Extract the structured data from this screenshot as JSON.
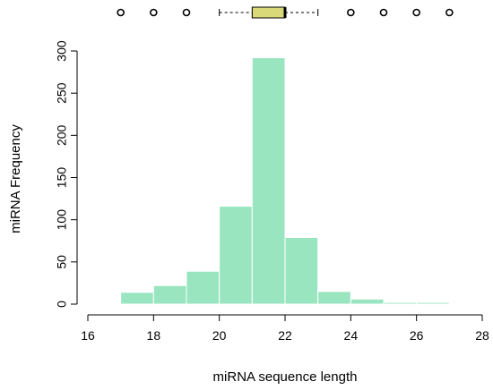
{
  "chart_data": {
    "type": "bar",
    "histogram": {
      "bin_edges": [
        17,
        18,
        19,
        20,
        21,
        22,
        23,
        24,
        25,
        26,
        27
      ],
      "counts": [
        14,
        22,
        39,
        116,
        292,
        79,
        15,
        6,
        2,
        2
      ],
      "color": "#99e5c0"
    },
    "boxplot": {
      "whisker_low": 20,
      "q1": 21,
      "median": 22,
      "q3": 22,
      "whisker_high": 23,
      "outliers": [
        17,
        18,
        19,
        24,
        25,
        26,
        27
      ],
      "box_color": "#d9d97a"
    },
    "xlabel": "miRNA sequence length",
    "ylabel": "miRNA Frequency",
    "xlim": [
      16,
      28
    ],
    "ylim": [
      0,
      300
    ],
    "x_ticks": [
      16,
      18,
      20,
      22,
      24,
      26,
      28
    ],
    "y_ticks": [
      0,
      50,
      100,
      150,
      200,
      250,
      300
    ]
  }
}
